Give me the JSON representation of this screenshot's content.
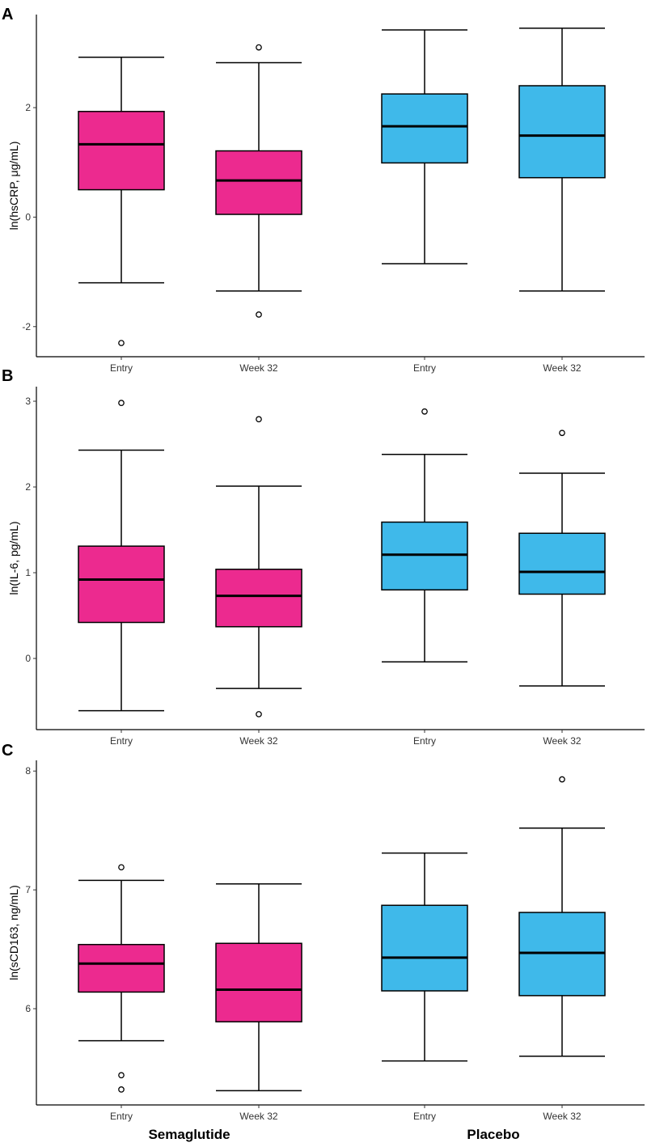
{
  "colors": {
    "semaglutide": "#ec2a8f",
    "placebo": "#3fb9ea",
    "outline": "#000000",
    "background": "#ffffff"
  },
  "group_labels": [
    "Semaglutide",
    "Placebo"
  ],
  "chart_data": [
    {
      "type": "boxplot",
      "panel": "A",
      "ylabel": "ln(hsCRP, μg/mL)",
      "ylim": [
        -2.55,
        3.7
      ],
      "yticks": [
        -2,
        0,
        2
      ],
      "ytick_labels": [
        "-2",
        "0",
        "2"
      ],
      "categories": [
        "Entry",
        "Week 32",
        "Entry",
        "Week 32"
      ],
      "groups": [
        "Semaglutide",
        "Semaglutide",
        "Placebo",
        "Placebo"
      ],
      "boxes": [
        {
          "whisker_low": -1.2,
          "q1": 0.5,
          "median": 1.33,
          "q3": 1.93,
          "whisker_high": 2.92,
          "outliers": [
            -2.3
          ]
        },
        {
          "whisker_low": -1.35,
          "q1": 0.05,
          "median": 0.67,
          "q3": 1.21,
          "whisker_high": 2.82,
          "outliers": [
            -1.78,
            3.1
          ]
        },
        {
          "whisker_low": -0.85,
          "q1": 0.99,
          "median": 1.66,
          "q3": 2.25,
          "whisker_high": 3.42,
          "outliers": []
        },
        {
          "whisker_low": -1.35,
          "q1": 0.72,
          "median": 1.49,
          "q3": 2.4,
          "whisker_high": 3.45,
          "outliers": []
        }
      ]
    },
    {
      "type": "boxplot",
      "panel": "B",
      "ylabel": "ln(IL-6, pg/mL)",
      "ylim": [
        -0.83,
        3.17
      ],
      "yticks": [
        0,
        1,
        2,
        3
      ],
      "ytick_labels": [
        "0",
        "1",
        "2",
        "3"
      ],
      "categories": [
        "Entry",
        "Week 32",
        "Entry",
        "Week 32"
      ],
      "groups": [
        "Semaglutide",
        "Semaglutide",
        "Placebo",
        "Placebo"
      ],
      "boxes": [
        {
          "whisker_low": -0.61,
          "q1": 0.42,
          "median": 0.92,
          "q3": 1.31,
          "whisker_high": 2.43,
          "outliers": [
            2.98
          ]
        },
        {
          "whisker_low": -0.35,
          "q1": 0.37,
          "median": 0.73,
          "q3": 1.04,
          "whisker_high": 2.01,
          "outliers": [
            -0.65,
            2.79
          ]
        },
        {
          "whisker_low": -0.04,
          "q1": 0.8,
          "median": 1.21,
          "q3": 1.59,
          "whisker_high": 2.38,
          "outliers": [
            2.88
          ]
        },
        {
          "whisker_low": -0.32,
          "q1": 0.75,
          "median": 1.01,
          "q3": 1.46,
          "whisker_high": 2.16,
          "outliers": [
            2.63
          ]
        }
      ]
    },
    {
      "type": "boxplot",
      "panel": "C",
      "ylabel": "ln(sCD163, ng/mL)",
      "ylim": [
        5.19,
        8.09
      ],
      "yticks": [
        6,
        7,
        8
      ],
      "ytick_labels": [
        "6",
        "7",
        "8"
      ],
      "categories": [
        "Entry",
        "Week 32",
        "Entry",
        "Week 32"
      ],
      "groups": [
        "Semaglutide",
        "Semaglutide",
        "Placebo",
        "Placebo"
      ],
      "boxes": [
        {
          "whisker_low": 5.73,
          "q1": 6.14,
          "median": 6.38,
          "q3": 6.54,
          "whisker_high": 7.08,
          "outliers": [
            5.32,
            5.44,
            7.19
          ]
        },
        {
          "whisker_low": 5.31,
          "q1": 5.89,
          "median": 6.16,
          "q3": 6.55,
          "whisker_high": 7.05,
          "outliers": []
        },
        {
          "whisker_low": 5.56,
          "q1": 6.15,
          "median": 6.43,
          "q3": 6.87,
          "whisker_high": 7.31,
          "outliers": []
        },
        {
          "whisker_low": 5.6,
          "q1": 6.11,
          "median": 6.47,
          "q3": 6.81,
          "whisker_high": 7.52,
          "outliers": [
            7.93
          ]
        }
      ]
    }
  ]
}
